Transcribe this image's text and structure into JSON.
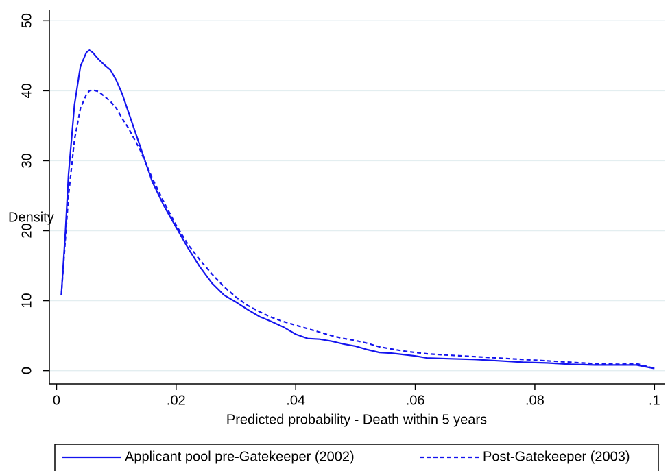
{
  "chart_data": {
    "type": "line",
    "x_label": "Predicted probability - Death within 5 years",
    "y_label": "Density",
    "x": [
      0.0008,
      0.0015,
      0.002,
      0.003,
      0.004,
      0.005,
      0.0055,
      0.006,
      0.007,
      0.008,
      0.009,
      0.01,
      0.011,
      0.012,
      0.014,
      0.016,
      0.018,
      0.02,
      0.022,
      0.024,
      0.026,
      0.028,
      0.03,
      0.032,
      0.034,
      0.036,
      0.038,
      0.04,
      0.042,
      0.044,
      0.046,
      0.048,
      0.05,
      0.052,
      0.054,
      0.056,
      0.058,
      0.06,
      0.062,
      0.066,
      0.07,
      0.074,
      0.078,
      0.082,
      0.086,
      0.09,
      0.094,
      0.097,
      0.1
    ],
    "series": [
      {
        "name": "Applicant pool pre-Gatekeeper (2002)",
        "color": "#1414ee",
        "line_style": "solid",
        "values": [
          10.8,
          20,
          28,
          38,
          43.5,
          45.5,
          45.8,
          45.5,
          44.5,
          43.7,
          43,
          41.5,
          39.5,
          37,
          32,
          27,
          23.5,
          20.5,
          17.5,
          14.8,
          12.5,
          10.8,
          9.8,
          8.7,
          7.7,
          7.0,
          6.2,
          5.2,
          4.6,
          4.5,
          4.2,
          3.8,
          3.5,
          3.0,
          2.6,
          2.5,
          2.3,
          2.1,
          1.8,
          1.7,
          1.6,
          1.4,
          1.2,
          1.1,
          0.9,
          0.8,
          0.8,
          0.8,
          0.3
        ]
      },
      {
        "name": "Post-Gatekeeper (2003)",
        "color": "#1414ee",
        "line_style": "dashed",
        "values": [
          10.8,
          19,
          25,
          33,
          37.5,
          39.5,
          40,
          40.1,
          39.9,
          39.2,
          38.5,
          37.5,
          36,
          34.7,
          31.5,
          27.5,
          24,
          20.8,
          18,
          15.8,
          13.8,
          12,
          10.5,
          9.3,
          8.4,
          7.6,
          7.0,
          6.5,
          6.0,
          5.5,
          5.0,
          4.6,
          4.3,
          3.9,
          3.4,
          3.1,
          2.8,
          2.6,
          2.4,
          2.2,
          2.0,
          1.8,
          1.6,
          1.4,
          1.2,
          1.0,
          0.9,
          1.0,
          0.3
        ]
      }
    ],
    "xlim": [
      -0.0012,
      0.1018
    ],
    "ylim": [
      -1.9,
      51.5
    ],
    "xticks": [
      0,
      {
        "value": 0.02,
        "label": ".02"
      },
      {
        "value": 0.04,
        "label": ".04"
      },
      {
        "value": 0.06,
        "label": ".06"
      },
      {
        "value": 0.08,
        "label": ".08"
      },
      {
        "value": 0.1,
        "label": ".1"
      }
    ],
    "yticks": [
      0,
      10,
      20,
      30,
      40,
      50
    ],
    "grid": true,
    "grid_color": "#e3eef0",
    "legend_position": "bottom"
  }
}
